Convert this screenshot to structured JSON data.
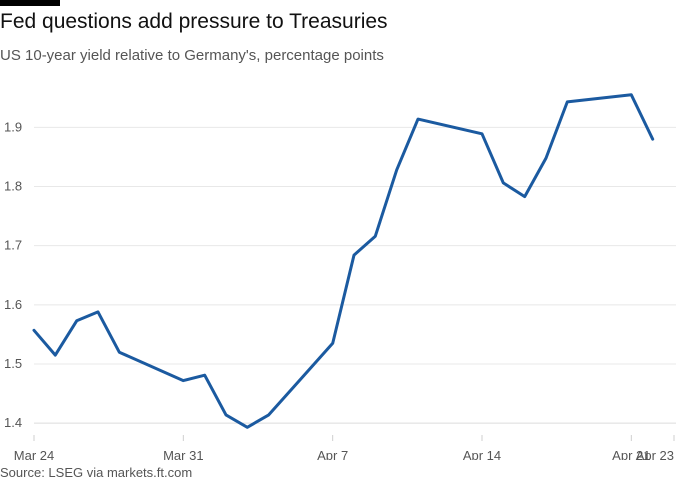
{
  "header": {
    "title": "Fed questions add pressure to Treasuries",
    "subtitle": "US 10-year yield relative to Germany's, percentage points"
  },
  "footer": {
    "source": "Source: LSEG via markets.ft.com"
  },
  "colors": {
    "line": "#1b5aa0",
    "grid": "#e8e8e8",
    "text": "#555555"
  },
  "chart_data": {
    "type": "line",
    "title": "Fed questions add pressure to Treasuries",
    "subtitle": "US 10-year yield relative to Germany's, percentage points",
    "xlabel": "",
    "ylabel": "",
    "ylim": [
      1.38,
      1.98
    ],
    "yticks": [
      1.4,
      1.5,
      1.6,
      1.7,
      1.8,
      1.9
    ],
    "ytick_labels": [
      "1.4",
      "1.5",
      "1.6",
      "1.7",
      "1.8",
      "1.9"
    ],
    "xticks": [
      {
        "label": "Mar 24",
        "x": "2025-03-24"
      },
      {
        "label": "Mar 31",
        "x": "2025-03-31"
      },
      {
        "label": "Apr 7",
        "x": "2025-04-07"
      },
      {
        "label": "Apr 14",
        "x": "2025-04-14"
      },
      {
        "label": "Apr 21",
        "x": "2025-04-21"
      },
      {
        "label": "Apr 23",
        "x": "2025-04-23"
      }
    ],
    "grid": true,
    "legend": "none",
    "series": [
      {
        "x": [
          "2025-03-24",
          "2025-03-25",
          "2025-03-26",
          "2025-03-27",
          "2025-03-28",
          "2025-03-31",
          "2025-04-01",
          "2025-04-02",
          "2025-04-03",
          "2025-04-04",
          "2025-04-07",
          "2025-04-08",
          "2025-04-09",
          "2025-04-10",
          "2025-04-11",
          "2025-04-14",
          "2025-04-15",
          "2025-04-16",
          "2025-04-17",
          "2025-04-18",
          "2025-04-21",
          "2025-04-22",
          "2025-04-23"
        ],
        "values": [
          1.557,
          1.515,
          1.573,
          1.588,
          1.52,
          1.472,
          1.481,
          1.414,
          1.393,
          1.414,
          1.535,
          1.684,
          1.716,
          1.828,
          1.914,
          1.889,
          1.806,
          1.783,
          1.848,
          1.943,
          1.955,
          1.88,
          null
        ]
      }
    ]
  }
}
